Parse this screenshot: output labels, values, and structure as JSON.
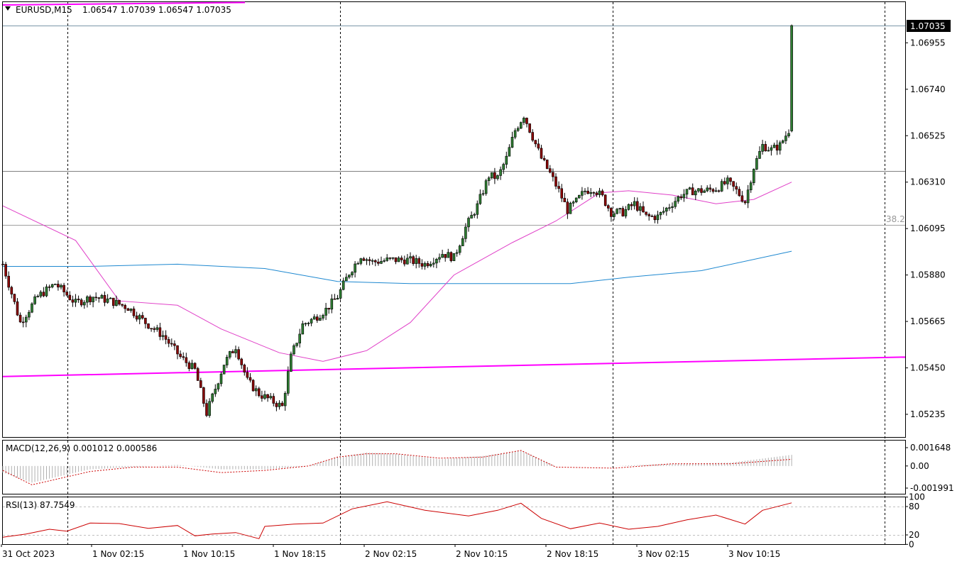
{
  "window": {
    "symbol_label": "EURUSD,M15",
    "ohlc": "1.06547 1.07039 1.06547 1.07035"
  },
  "main_panel": {
    "price_labels": [
      "1.06955",
      "1.06740",
      "1.06525",
      "1.06310",
      "1.06095",
      "1.05880",
      "1.05665",
      "1.05450",
      "1.05235"
    ],
    "current_price": "1.07035",
    "fib_label": "38.2"
  },
  "macd_panel": {
    "title": "MACD(12,26,9) 0.001012 0.000586",
    "scale_labels": [
      "0.001648",
      "0.00",
      "-0.001991"
    ]
  },
  "rsi_panel": {
    "title": "RSI(13) 87.7549",
    "scale_labels": [
      "100",
      "80",
      "20",
      "0"
    ]
  },
  "time_axis": {
    "labels": [
      "31 Oct 2023",
      "1 Nov 02:15",
      "1 Nov 10:15",
      "1 Nov 18:15",
      "2 Nov 02:15",
      "2 Nov 10:15",
      "2 Nov 18:15",
      "3 Nov 02:15",
      "3 Nov 10:15"
    ]
  },
  "colors": {
    "bull": "#2e7d32",
    "bear": "#8b0000",
    "ma_fast": "#e040c8",
    "ma_slow": "#1e88d0",
    "trend": "#ff00ff",
    "macd_signal": "#cc0000",
    "rsi": "#cc0000"
  },
  "chart_data": [
    {
      "type": "candlestick",
      "title": "EURUSD,M15",
      "yticks": [
        1.06955,
        1.0674,
        1.06525,
        1.0631,
        1.06095,
        1.0588,
        1.05665,
        1.0545,
        1.05235
      ],
      "last_price": 1.07035,
      "close_path": [
        [
          0,
          1.0593
        ],
        [
          6,
          1.0566
        ],
        [
          12,
          1.0578
        ],
        [
          18,
          1.0584
        ],
        [
          25,
          1.0575
        ],
        [
          31,
          1.0578
        ],
        [
          37,
          1.0576
        ],
        [
          43,
          1.0573
        ],
        [
          49,
          1.0566
        ],
        [
          55,
          1.056
        ],
        [
          61,
          1.055
        ],
        [
          66,
          1.0544
        ],
        [
          70,
          1.0524
        ],
        [
          76,
          1.0547
        ],
        [
          80,
          1.0555
        ],
        [
          84,
          1.0539
        ],
        [
          88,
          1.0533
        ],
        [
          92,
          1.053
        ],
        [
          96,
          1.0527
        ],
        [
          99,
          1.055
        ],
        [
          103,
          1.0565
        ],
        [
          107,
          1.0568
        ],
        [
          111,
          1.0572
        ],
        [
          115,
          1.0578
        ],
        [
          119,
          1.0589
        ],
        [
          123,
          1.0597
        ],
        [
          127,
          1.0594
        ],
        [
          133,
          1.0595
        ],
        [
          139,
          1.0595
        ],
        [
          145,
          1.0593
        ],
        [
          151,
          1.0598
        ],
        [
          155,
          1.0596
        ],
        [
          159,
          1.061
        ],
        [
          163,
          1.062
        ],
        [
          167,
          1.0634
        ],
        [
          170,
          1.0633
        ],
        [
          173,
          1.0642
        ],
        [
          176,
          1.0655
        ],
        [
          179,
          1.0662
        ],
        [
          182,
          1.0652
        ],
        [
          185,
          1.0642
        ],
        [
          188,
          1.0635
        ],
        [
          191,
          1.0627
        ],
        [
          194,
          1.0618
        ],
        [
          197,
          1.0622
        ],
        [
          200,
          1.0627
        ],
        [
          203,
          1.0628
        ],
        [
          206,
          1.0624
        ],
        [
          209,
          1.0617
        ],
        [
          213,
          1.0617
        ],
        [
          217,
          1.0621
        ],
        [
          221,
          1.0615
        ],
        [
          225,
          1.0615
        ],
        [
          229,
          1.062
        ],
        [
          233,
          1.0625
        ],
        [
          237,
          1.0627
        ],
        [
          241,
          1.0627
        ],
        [
          245,
          1.0628
        ],
        [
          249,
          1.0631
        ],
        [
          252,
          1.0627
        ],
        [
          255,
          1.0622
        ],
        [
          258,
          1.0638
        ],
        [
          261,
          1.0648
        ],
        [
          264,
          1.0646
        ],
        [
          267,
          1.0648
        ],
        [
          270,
          1.0655
        ],
        [
          271,
          1.0703
        ]
      ]
    },
    {
      "type": "line",
      "name": "MA (magenta)",
      "points": [
        [
          0,
          1.062
        ],
        [
          25,
          1.0604
        ],
        [
          40,
          1.0576
        ],
        [
          60,
          1.0574
        ],
        [
          75,
          1.0563
        ],
        [
          95,
          1.0552
        ],
        [
          110,
          1.0548
        ],
        [
          125,
          1.0553
        ],
        [
          140,
          1.0566
        ],
        [
          155,
          1.0588
        ],
        [
          175,
          1.0603
        ],
        [
          190,
          1.0613
        ],
        [
          205,
          1.0626
        ],
        [
          215,
          1.0627
        ],
        [
          230,
          1.0625
        ],
        [
          245,
          1.0621
        ],
        [
          258,
          1.0623
        ],
        [
          271,
          1.0631
        ]
      ]
    },
    {
      "type": "line",
      "name": "MA (blue)",
      "points": [
        [
          0,
          1.0592
        ],
        [
          30,
          1.0592
        ],
        [
          60,
          1.0593
        ],
        [
          90,
          1.0591
        ],
        [
          115,
          1.0585
        ],
        [
          140,
          1.0584
        ],
        [
          165,
          1.0584
        ],
        [
          195,
          1.0584
        ],
        [
          215,
          1.0587
        ],
        [
          240,
          1.059
        ],
        [
          271,
          1.0599
        ]
      ]
    },
    {
      "type": "line",
      "name": "trendline",
      "points": [
        [
          0,
          1.0541
        ],
        [
          311,
          1.055
        ]
      ]
    },
    {
      "type": "bar",
      "title": "MACD(12,26,9) 0.001012 0.000586",
      "yticks": [
        0.001648,
        0.0,
        -0.001991
      ],
      "histogram": [
        [
          0,
          -0.0006
        ],
        [
          10,
          -0.0015
        ],
        [
          20,
          -0.0009
        ],
        [
          30,
          -0.0003
        ],
        [
          45,
          -0.0001
        ],
        [
          60,
          0.0001
        ],
        [
          75,
          -0.0003
        ],
        [
          90,
          -0.0003
        ],
        [
          105,
          0.0
        ],
        [
          115,
          0.0008
        ],
        [
          125,
          0.0012
        ],
        [
          135,
          0.0011
        ],
        [
          150,
          0.0006
        ],
        [
          165,
          0.0009
        ],
        [
          178,
          0.0014
        ],
        [
          190,
          0.0
        ],
        [
          210,
          0.0
        ],
        [
          230,
          0.0002
        ],
        [
          250,
          0.0003
        ],
        [
          271,
          0.001
        ]
      ],
      "signal": [
        [
          0,
          -0.0004
        ],
        [
          10,
          -0.0017
        ],
        [
          20,
          -0.0011
        ],
        [
          30,
          -0.0005
        ],
        [
          45,
          -0.0001
        ],
        [
          60,
          -0.0001
        ],
        [
          75,
          -0.0006
        ],
        [
          90,
          -0.0004
        ],
        [
          105,
          0.0
        ],
        [
          115,
          0.0008
        ],
        [
          125,
          0.0011
        ],
        [
          135,
          0.0011
        ],
        [
          150,
          0.0007
        ],
        [
          165,
          0.0008
        ],
        [
          178,
          0.0014
        ],
        [
          190,
          -0.0001
        ],
        [
          210,
          -0.0002
        ],
        [
          230,
          0.0002
        ],
        [
          250,
          0.0002
        ],
        [
          271,
          0.0006
        ]
      ]
    },
    {
      "type": "line",
      "title": "RSI(13) 87.7549",
      "yticks": [
        100,
        80,
        20,
        0
      ],
      "points": [
        [
          0,
          15
        ],
        [
          8,
          22
        ],
        [
          16,
          32
        ],
        [
          22,
          28
        ],
        [
          30,
          45
        ],
        [
          40,
          44
        ],
        [
          50,
          34
        ],
        [
          60,
          40
        ],
        [
          66,
          18
        ],
        [
          72,
          22
        ],
        [
          80,
          25
        ],
        [
          88,
          12
        ],
        [
          90,
          38
        ],
        [
          100,
          43
        ],
        [
          110,
          45
        ],
        [
          120,
          75
        ],
        [
          132,
          90
        ],
        [
          145,
          72
        ],
        [
          160,
          60
        ],
        [
          170,
          72
        ],
        [
          178,
          87
        ],
        [
          185,
          55
        ],
        [
          195,
          33
        ],
        [
          205,
          45
        ],
        [
          215,
          32
        ],
        [
          225,
          38
        ],
        [
          235,
          52
        ],
        [
          245,
          62
        ],
        [
          255,
          43
        ],
        [
          261,
          72
        ],
        [
          271,
          87.75
        ]
      ]
    }
  ]
}
